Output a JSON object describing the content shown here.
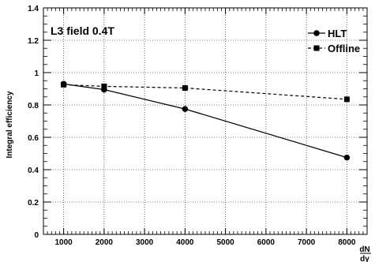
{
  "chart_data": {
    "type": "line",
    "title": "L3 field 0.4T",
    "ylabel": "Integral efficiency",
    "xlabel_numerator": "dN",
    "xlabel_denominator": "dy",
    "xlim": [
      500,
      8500
    ],
    "ylim": [
      0,
      1.4
    ],
    "xticks": [
      1000,
      2000,
      3000,
      4000,
      5000,
      6000,
      7000,
      8000
    ],
    "xtick_labels": [
      "1000",
      "2000",
      "3000",
      "4000",
      "5000",
      "6000",
      "7000",
      "8000"
    ],
    "yticks": [
      0,
      0.2,
      0.4,
      0.6,
      0.8,
      1,
      1.2,
      1.4
    ],
    "ytick_labels": [
      "0",
      "0.2",
      "0.4",
      "0.6",
      "0.8",
      "1",
      "1.2",
      "1.4"
    ],
    "grid": true,
    "legend_position": "top-right",
    "series": [
      {
        "name": "HLT",
        "line_style": "solid",
        "marker": "circle",
        "color": "#000000",
        "x": [
          1000,
          2000,
          4000,
          8000
        ],
        "y": [
          0.93,
          0.895,
          0.775,
          0.475
        ]
      },
      {
        "name": "Offline",
        "line_style": "dashed",
        "marker": "square",
        "color": "#000000",
        "x": [
          1000,
          2000,
          4000,
          8000
        ],
        "y": [
          0.925,
          0.915,
          0.905,
          0.835
        ]
      }
    ]
  }
}
